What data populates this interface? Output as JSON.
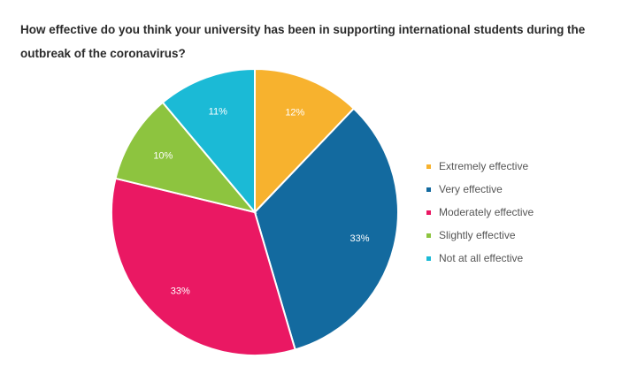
{
  "chart_data": {
    "type": "pie",
    "title": "How effective do you think your university has been in supporting international students during the outbreak of the coronavirus?",
    "slices": [
      {
        "label": "Extremely effective",
        "value": 12,
        "display": "12%",
        "color": "#f7b22e"
      },
      {
        "label": "Very effective",
        "value": 33,
        "display": "33%",
        "color": "#136a9f"
      },
      {
        "label": "Moderately effective",
        "value": 33,
        "display": "33%",
        "color": "#ea1863"
      },
      {
        "label": "Slightly effective",
        "value": 10,
        "display": "10%",
        "color": "#8dc43f"
      },
      {
        "label": "Not at all effective",
        "value": 11,
        "display": "11%",
        "color": "#1bbad6"
      }
    ],
    "legend_position": "right"
  }
}
